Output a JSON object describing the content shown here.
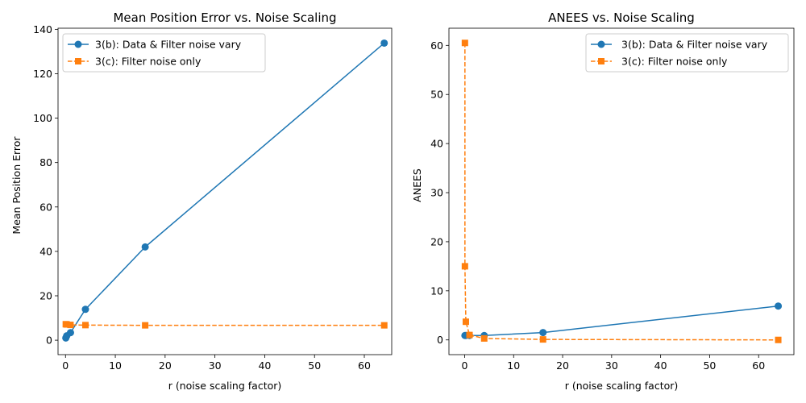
{
  "chart_data": [
    {
      "type": "line",
      "title": "Mean Position Error vs. Noise Scaling",
      "xlabel": "r (noise scaling factor)",
      "ylabel": "Mean Position Error",
      "xlim": [
        -1.5,
        65.5
      ],
      "ylim": [
        -6.5,
        140.5
      ],
      "xticks": [
        0,
        10,
        20,
        30,
        40,
        50,
        60
      ],
      "yticks": [
        0,
        20,
        40,
        60,
        80,
        100,
        120,
        140
      ],
      "legend_position": "upper-left",
      "grid": false,
      "series": [
        {
          "name": "3(b): Data & Filter noise vary",
          "color": "#1f77b4",
          "linestyle": "solid",
          "marker": "circle",
          "x": [
            0.0625,
            0.25,
            1,
            4,
            16,
            64
          ],
          "y": [
            1.0,
            2.0,
            3.4,
            13.9,
            42.0,
            133.8
          ]
        },
        {
          "name": "3(c): Filter noise only",
          "color": "#ff7f0e",
          "linestyle": "dashed",
          "marker": "square",
          "x": [
            0.0625,
            0.25,
            1,
            4,
            16,
            64
          ],
          "y": [
            7.2,
            7.1,
            6.9,
            6.8,
            6.7,
            6.7
          ]
        }
      ]
    },
    {
      "type": "line",
      "title": "ANEES vs. Noise Scaling",
      "xlabel": "r (noise scaling factor)",
      "ylabel": "ANEES",
      "xlim": [
        -3.2,
        67.2
      ],
      "ylim": [
        -3.0,
        63.5
      ],
      "xticks": [
        0,
        10,
        20,
        30,
        40,
        50,
        60
      ],
      "yticks": [
        0,
        10,
        20,
        30,
        40,
        50,
        60
      ],
      "legend_position": "upper-right",
      "grid": false,
      "series": [
        {
          "name": "3(b): Data & Filter noise vary",
          "color": "#1f77b4",
          "linestyle": "solid",
          "marker": "circle",
          "x": [
            0.0625,
            0.25,
            1,
            4,
            16,
            64
          ],
          "y": [
            0.9,
            0.9,
            0.9,
            0.9,
            1.5,
            6.9
          ]
        },
        {
          "name": "3(c): Filter noise only",
          "color": "#ff7f0e",
          "linestyle": "dashed",
          "marker": "square",
          "x": [
            0.0625,
            0.0625,
            0.25,
            1,
            4,
            16,
            64
          ],
          "y": [
            60.5,
            15.0,
            3.7,
            1.0,
            0.3,
            0.1,
            0.0
          ]
        }
      ]
    }
  ]
}
